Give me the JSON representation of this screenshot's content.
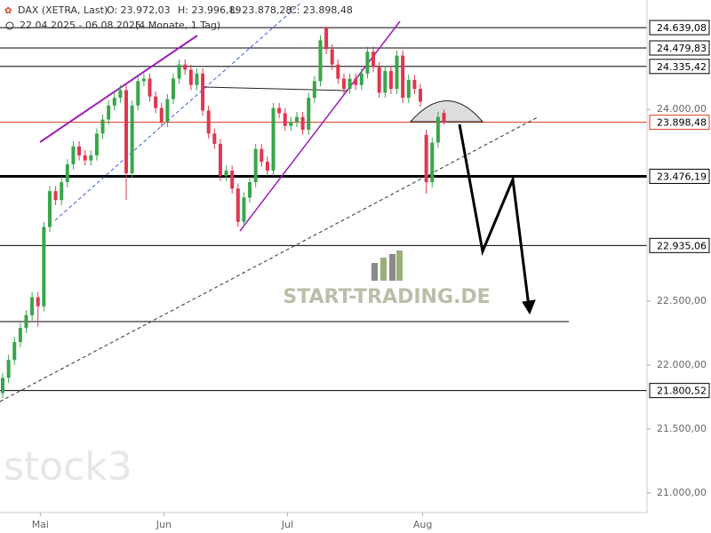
{
  "chart_data": {
    "type": "candlestick",
    "header": {
      "name": "DAX (XETRA, Last)",
      "open_label": "O: 23.972,03",
      "high_label": "H: 23.996,89",
      "low_label": "L: 23.878,28",
      "close_label": "C: 23.898,48",
      "range": "22.04.2025 - 06.08.2025",
      "span": "(4 Monate, 1 Tag)"
    },
    "watermarks": [
      "START-TRADING.DE",
      "stock3"
    ],
    "up_color": "#3aa54a",
    "down_color": "#e0364f",
    "categories": [
      null,
      null,
      null,
      null,
      null,
      null,
      null,
      "Mai",
      null,
      null,
      null,
      null,
      null,
      null,
      null,
      null,
      null,
      null,
      null,
      null,
      null,
      null,
      null,
      null,
      null,
      null,
      null,
      null,
      "Jun",
      null,
      null,
      null,
      null,
      null,
      null,
      null,
      null,
      null,
      null,
      null,
      null,
      null,
      null,
      null,
      null,
      null,
      null,
      null,
      null,
      "Jul",
      null,
      null,
      null,
      null,
      null,
      null,
      null,
      null,
      null,
      null,
      null,
      null,
      null,
      null,
      null,
      null,
      null,
      null,
      null,
      null,
      null,
      null,
      "Aug",
      null,
      null,
      null
    ],
    "open": [
      21780,
      21900,
      22040,
      22180,
      22290,
      22390,
      22530,
      22460,
      23080,
      23360,
      23290,
      23430,
      23570,
      23710,
      23640,
      23600,
      23640,
      23810,
      23920,
      24030,
      24090,
      24150,
      23500,
      24030,
      24220,
      24240,
      24100,
      24010,
      23900,
      24080,
      24240,
      24350,
      24310,
      24190,
      24280,
      23990,
      23810,
      23730,
      23480,
      23520,
      23380,
      23120,
      23310,
      23430,
      23690,
      23590,
      23520,
      24010,
      23970,
      23870,
      23900,
      23940,
      23840,
      24090,
      24220,
      24640,
      24470,
      24350,
      24240,
      24160,
      24240,
      24190,
      24280,
      24450,
      24330,
      24130,
      24300,
      24160,
      24420,
      24090,
      24230,
      24160,
      23800,
      23430,
      23740,
      23972.03
    ],
    "high": [
      21940,
      22080,
      22220,
      22330,
      22430,
      22570,
      22570,
      23120,
      23400,
      23400,
      23470,
      23610,
      23750,
      23750,
      23680,
      23680,
      23850,
      23960,
      24070,
      24130,
      24190,
      24190,
      24070,
      24260,
      24280,
      24280,
      24140,
      24050,
      24120,
      24280,
      24390,
      24390,
      24350,
      24320,
      24320,
      24030,
      23850,
      23770,
      23560,
      23560,
      23420,
      23350,
      23470,
      23730,
      23730,
      23630,
      24050,
      24050,
      24010,
      23940,
      23980,
      23980,
      24130,
      24260,
      24580,
      24650,
      24510,
      24390,
      24280,
      24280,
      24280,
      24320,
      24490,
      24490,
      24370,
      24340,
      24340,
      24460,
      24460,
      24270,
      24270,
      24200,
      23840,
      23780,
      23980,
      23996.89
    ],
    "low": [
      21740,
      21860,
      22000,
      22140,
      22250,
      22350,
      22300,
      22420,
      23040,
      23250,
      23250,
      23390,
      23530,
      23600,
      23560,
      23560,
      23600,
      23770,
      23880,
      23990,
      24050,
      23290,
      23460,
      23990,
      24180,
      24060,
      23970,
      23860,
      23860,
      24040,
      24200,
      24270,
      24150,
      24150,
      23950,
      23770,
      23690,
      23440,
      23440,
      23340,
      23080,
      23080,
      23270,
      23390,
      23550,
      23480,
      23480,
      23930,
      23830,
      23830,
      23860,
      23800,
      23800,
      24050,
      24180,
      24430,
      24310,
      24200,
      24120,
      24120,
      24150,
      24150,
      24240,
      24290,
      24090,
      24090,
      24120,
      24120,
      24050,
      24050,
      24120,
      24020,
      23340,
      23390,
      23700,
      23878.28
    ],
    "close": [
      21900,
      22040,
      22180,
      22290,
      22390,
      22530,
      22460,
      23080,
      23360,
      23290,
      23430,
      23570,
      23710,
      23640,
      23600,
      23640,
      23810,
      23920,
      24030,
      24090,
      24150,
      23500,
      24030,
      24220,
      24240,
      24100,
      24010,
      23900,
      24080,
      24240,
      24350,
      24310,
      24190,
      24280,
      23990,
      23810,
      23730,
      23480,
      23520,
      23380,
      23120,
      23310,
      23430,
      23690,
      23590,
      23520,
      24010,
      23970,
      23870,
      23900,
      23940,
      23840,
      24090,
      24220,
      24540,
      24470,
      24350,
      24240,
      24160,
      24240,
      24190,
      24280,
      24450,
      24330,
      24130,
      24300,
      24160,
      24420,
      24090,
      24230,
      24160,
      24060,
      23430,
      23740,
      23940,
      23898.48
    ],
    "ylim": [
      20860,
      24855
    ],
    "yticks": [
      {
        "value": 21000,
        "label": "21.000,00"
      },
      {
        "value": 21500,
        "label": "21.500,00"
      },
      {
        "value": 22000,
        "label": "22.000,00"
      },
      {
        "value": 22500,
        "label": "22.500,00"
      },
      {
        "value": 24000,
        "label": "24.000,00"
      }
    ],
    "levels": [
      {
        "value": 24639.08,
        "label": "24.639,08",
        "color": "#000000",
        "linewidth": 1
      },
      {
        "value": 24479.83,
        "label": "24.479,83",
        "color": "#000000",
        "linewidth": 1
      },
      {
        "value": 24335.42,
        "label": "24.335,42",
        "color": "#000000",
        "linewidth": 1
      },
      {
        "value": 23898.48,
        "label": "23.898,48",
        "color": "#d9381e",
        "linewidth": 1
      },
      {
        "value": 23476.19,
        "label": "23.476,19",
        "color": "#000000",
        "linewidth": 3
      },
      {
        "value": 22935.06,
        "label": "22.935,06",
        "color": "#000000",
        "linewidth": 1
      },
      {
        "value": 21800.52,
        "label": "21.800,52",
        "color": "#000000",
        "linewidth": 1
      },
      {
        "value": 22340,
        "color": "#000000",
        "linewidth": 1
      }
    ]
  }
}
